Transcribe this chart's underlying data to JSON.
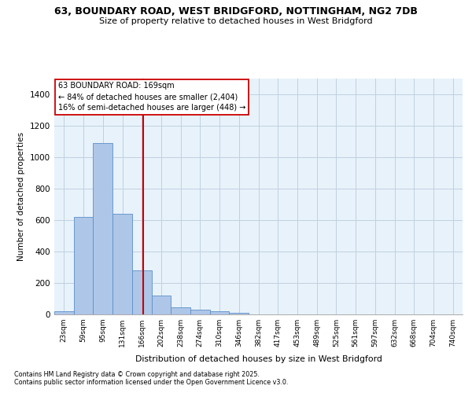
{
  "title_line1": "63, BOUNDARY ROAD, WEST BRIDGFORD, NOTTINGHAM, NG2 7DB",
  "title_line2": "Size of property relative to detached houses in West Bridgford",
  "xlabel": "Distribution of detached houses by size in West Bridgford",
  "ylabel": "Number of detached properties",
  "categories": [
    "23sqm",
    "59sqm",
    "95sqm",
    "131sqm",
    "166sqm",
    "202sqm",
    "238sqm",
    "274sqm",
    "310sqm",
    "346sqm",
    "382sqm",
    "417sqm",
    "453sqm",
    "489sqm",
    "525sqm",
    "561sqm",
    "597sqm",
    "632sqm",
    "668sqm",
    "704sqm",
    "740sqm"
  ],
  "values": [
    20,
    620,
    1090,
    640,
    280,
    120,
    45,
    30,
    20,
    8,
    2,
    0,
    0,
    0,
    0,
    0,
    0,
    0,
    0,
    0,
    0
  ],
  "bar_color": "#aec6e8",
  "bar_edge_color": "#5b8fc9",
  "grid_color": "#c0d0e0",
  "bg_color": "#e8f2fb",
  "vline_color": "#cc0000",
  "annotation_line1": "63 BOUNDARY ROAD: 169sqm",
  "annotation_line2": "← 84% of detached houses are smaller (2,404)",
  "annotation_line3": "16% of semi-detached houses are larger (448) →",
  "annotation_box_edgecolor": "#cc0000",
  "footnote1": "Contains HM Land Registry data © Crown copyright and database right 2025.",
  "footnote2": "Contains public sector information licensed under the Open Government Licence v3.0.",
  "ylim": [
    0,
    1500
  ],
  "yticks": [
    0,
    200,
    400,
    600,
    800,
    1000,
    1200,
    1400
  ],
  "property_size_sqm": 169
}
